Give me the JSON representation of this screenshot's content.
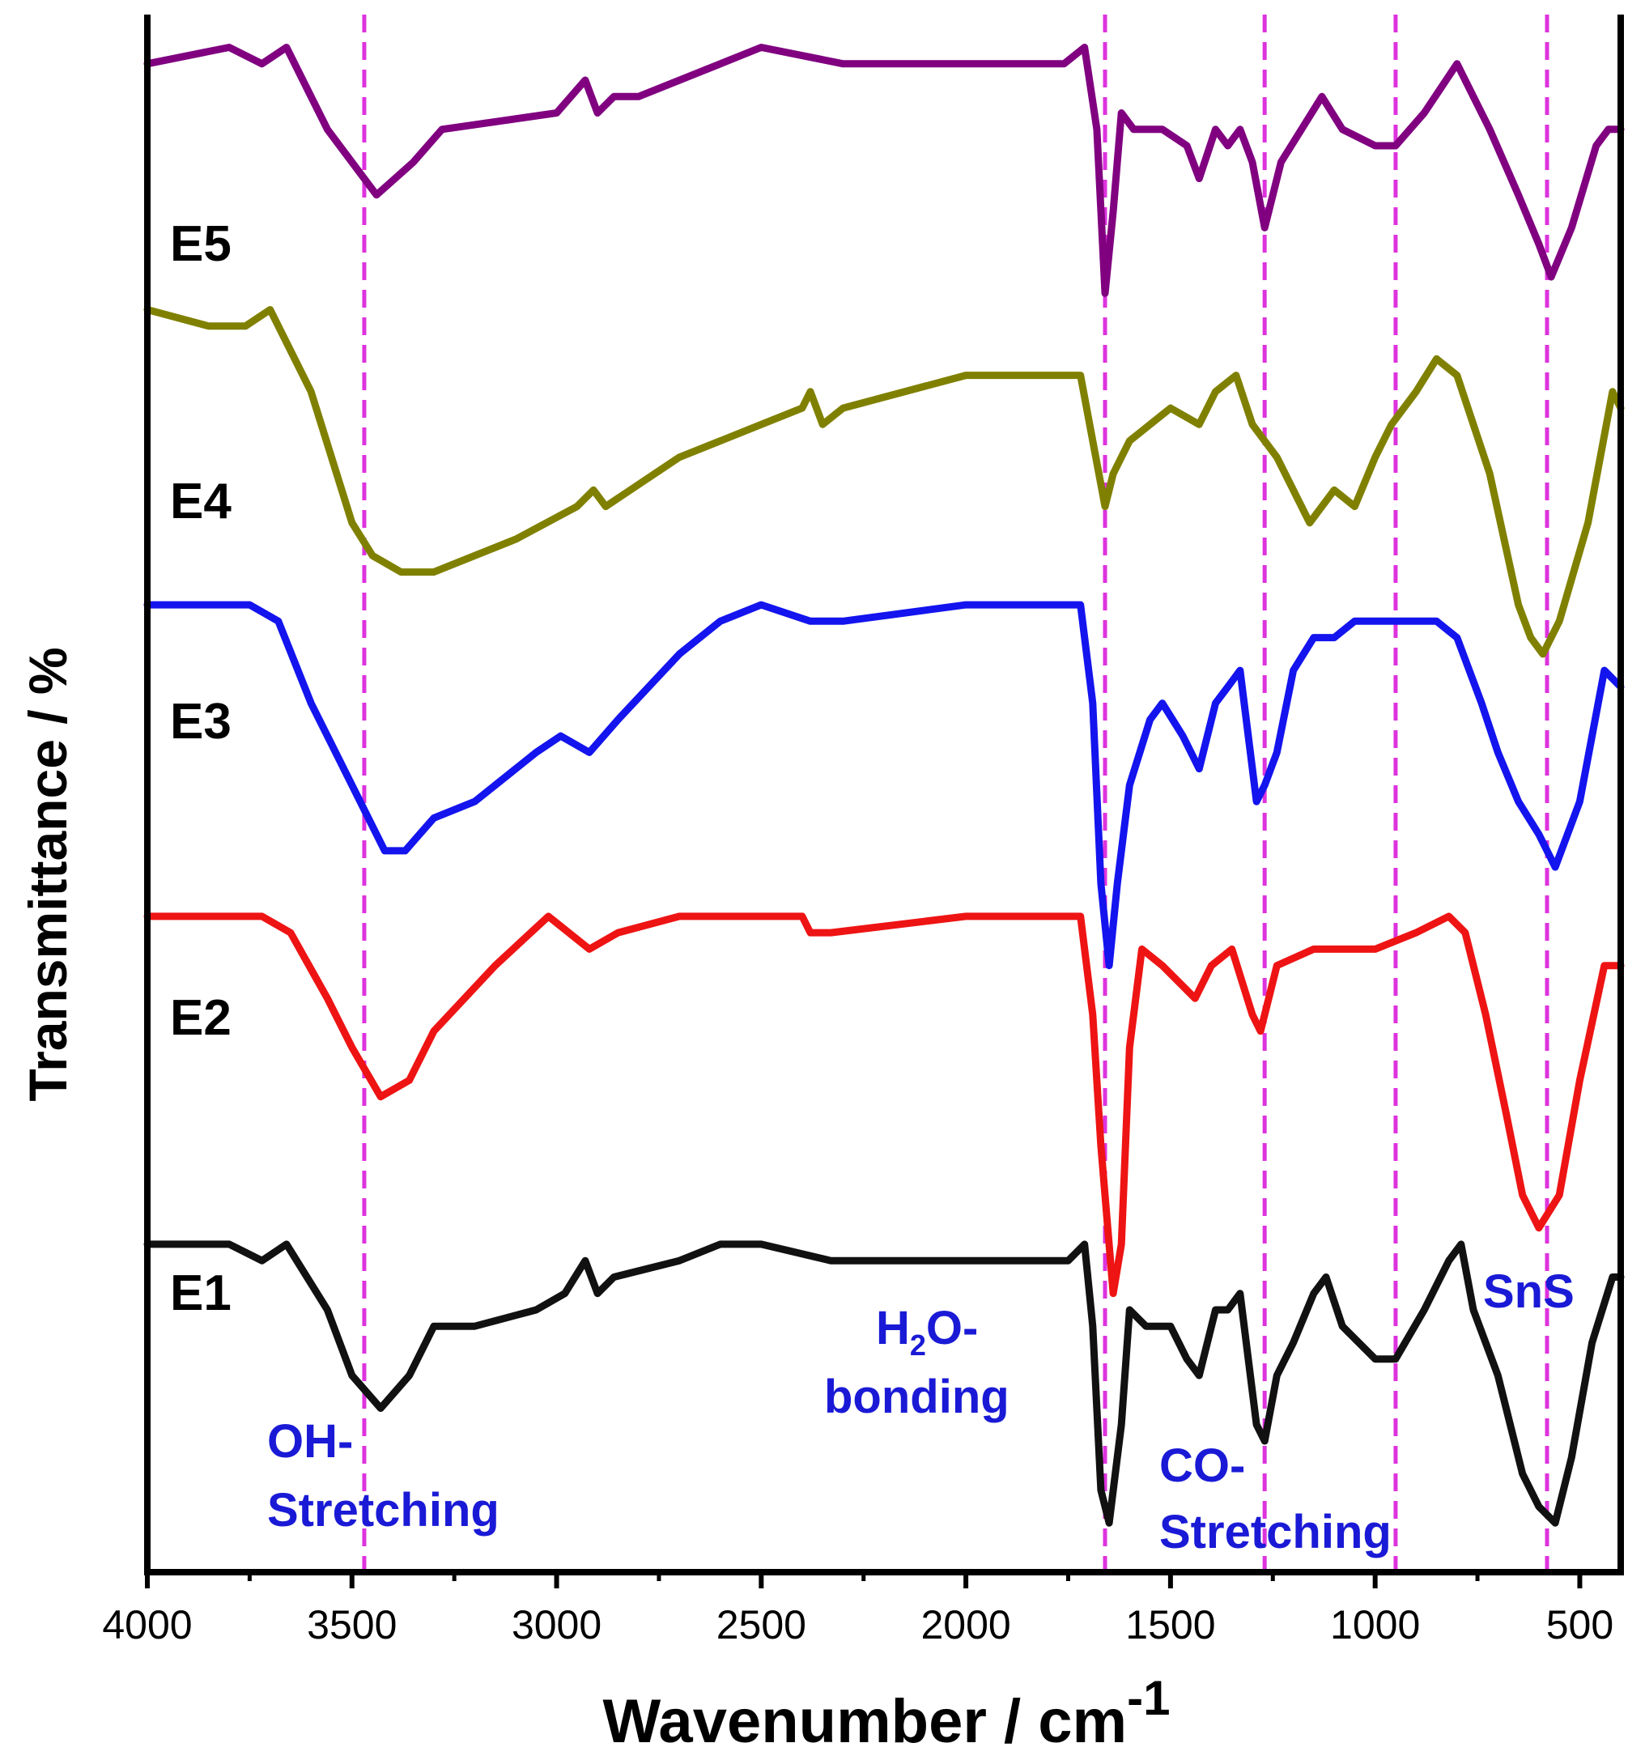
{
  "chart_data": {
    "type": "line",
    "title": "",
    "xlabel": "Wavenumber / cm",
    "xlabel_sup": "-1",
    "ylabel": "Transmittance / %",
    "xlim": [
      4000,
      400
    ],
    "x_reversed": true,
    "y_ticks_shown": false,
    "grid": false,
    "legend": "inline-left",
    "x_ticks": [
      4000,
      3500,
      3000,
      2500,
      2000,
      1500,
      1000,
      500
    ],
    "reference_lines": [
      3470,
      1660,
      1270,
      950,
      580
    ],
    "reference_line_color": "#dd33dd",
    "annotations": [
      {
        "id": "oh",
        "lines": [
          "OH-",
          "Stretching"
        ],
        "color": "#1a1ad6"
      },
      {
        "id": "h2o",
        "lines": [
          "H",
          "2",
          "O-",
          "bonding"
        ],
        "color": "#1a1ad6"
      },
      {
        "id": "co",
        "lines": [
          "CO-",
          "Stretching"
        ],
        "color": "#1a1ad6"
      },
      {
        "id": "sns",
        "lines": [
          "SnS"
        ],
        "color": "#1a1ad6"
      }
    ],
    "series": [
      {
        "name": "E5",
        "color": "#800080",
        "points": [
          [
            4000,
            0.9
          ],
          [
            3800,
            0.91
          ],
          [
            3720,
            0.9
          ],
          [
            3660,
            0.91
          ],
          [
            3560,
            0.86
          ],
          [
            3440,
            0.82
          ],
          [
            3350,
            0.84
          ],
          [
            3280,
            0.86
          ],
          [
            3000,
            0.87
          ],
          [
            2930,
            0.89
          ],
          [
            2900,
            0.87
          ],
          [
            2860,
            0.88
          ],
          [
            2800,
            0.88
          ],
          [
            2600,
            0.9
          ],
          [
            2500,
            0.91
          ],
          [
            2300,
            0.9
          ],
          [
            2000,
            0.9
          ],
          [
            1760,
            0.9
          ],
          [
            1710,
            0.91
          ],
          [
            1680,
            0.86
          ],
          [
            1660,
            0.76
          ],
          [
            1640,
            0.81
          ],
          [
            1620,
            0.87
          ],
          [
            1590,
            0.86
          ],
          [
            1520,
            0.86
          ],
          [
            1460,
            0.85
          ],
          [
            1430,
            0.83
          ],
          [
            1390,
            0.86
          ],
          [
            1360,
            0.85
          ],
          [
            1330,
            0.86
          ],
          [
            1300,
            0.84
          ],
          [
            1270,
            0.8
          ],
          [
            1230,
            0.84
          ],
          [
            1180,
            0.86
          ],
          [
            1130,
            0.88
          ],
          [
            1080,
            0.86
          ],
          [
            1000,
            0.85
          ],
          [
            950,
            0.85
          ],
          [
            880,
            0.87
          ],
          [
            800,
            0.9
          ],
          [
            720,
            0.86
          ],
          [
            650,
            0.82
          ],
          [
            600,
            0.79
          ],
          [
            570,
            0.77
          ],
          [
            520,
            0.8
          ],
          [
            460,
            0.85
          ],
          [
            430,
            0.86
          ],
          [
            400,
            0.86
          ]
        ]
      },
      {
        "name": "E4",
        "color": "#808000",
        "points": [
          [
            4000,
            0.75
          ],
          [
            3850,
            0.74
          ],
          [
            3760,
            0.74
          ],
          [
            3700,
            0.75
          ],
          [
            3600,
            0.7
          ],
          [
            3500,
            0.62
          ],
          [
            3450,
            0.6
          ],
          [
            3380,
            0.59
          ],
          [
            3300,
            0.59
          ],
          [
            3100,
            0.61
          ],
          [
            2950,
            0.63
          ],
          [
            2910,
            0.64
          ],
          [
            2880,
            0.63
          ],
          [
            2700,
            0.66
          ],
          [
            2600,
            0.67
          ],
          [
            2500,
            0.68
          ],
          [
            2400,
            0.69
          ],
          [
            2380,
            0.7
          ],
          [
            2350,
            0.68
          ],
          [
            2300,
            0.69
          ],
          [
            2000,
            0.71
          ],
          [
            1800,
            0.71
          ],
          [
            1720,
            0.71
          ],
          [
            1690,
            0.67
          ],
          [
            1660,
            0.63
          ],
          [
            1640,
            0.65
          ],
          [
            1600,
            0.67
          ],
          [
            1500,
            0.69
          ],
          [
            1430,
            0.68
          ],
          [
            1390,
            0.7
          ],
          [
            1340,
            0.71
          ],
          [
            1300,
            0.68
          ],
          [
            1240,
            0.66
          ],
          [
            1160,
            0.62
          ],
          [
            1100,
            0.64
          ],
          [
            1050,
            0.63
          ],
          [
            1000,
            0.66
          ],
          [
            960,
            0.68
          ],
          [
            900,
            0.7
          ],
          [
            850,
            0.72
          ],
          [
            800,
            0.71
          ],
          [
            720,
            0.65
          ],
          [
            650,
            0.57
          ],
          [
            620,
            0.55
          ],
          [
            590,
            0.54
          ],
          [
            550,
            0.56
          ],
          [
            480,
            0.62
          ],
          [
            420,
            0.7
          ],
          [
            400,
            0.69
          ]
        ]
      },
      {
        "name": "E3",
        "color": "#1414ee",
        "points": [
          [
            4000,
            0.57
          ],
          [
            3750,
            0.57
          ],
          [
            3680,
            0.56
          ],
          [
            3600,
            0.51
          ],
          [
            3500,
            0.46
          ],
          [
            3420,
            0.42
          ],
          [
            3370,
            0.42
          ],
          [
            3300,
            0.44
          ],
          [
            3200,
            0.45
          ],
          [
            3050,
            0.48
          ],
          [
            2990,
            0.49
          ],
          [
            2920,
            0.48
          ],
          [
            2850,
            0.5
          ],
          [
            2700,
            0.54
          ],
          [
            2600,
            0.56
          ],
          [
            2500,
            0.57
          ],
          [
            2380,
            0.56
          ],
          [
            2300,
            0.56
          ],
          [
            2000,
            0.57
          ],
          [
            1800,
            0.57
          ],
          [
            1720,
            0.57
          ],
          [
            1690,
            0.51
          ],
          [
            1670,
            0.4
          ],
          [
            1650,
            0.35
          ],
          [
            1630,
            0.4
          ],
          [
            1600,
            0.46
          ],
          [
            1550,
            0.5
          ],
          [
            1520,
            0.51
          ],
          [
            1470,
            0.49
          ],
          [
            1430,
            0.47
          ],
          [
            1390,
            0.51
          ],
          [
            1360,
            0.52
          ],
          [
            1330,
            0.53
          ],
          [
            1290,
            0.45
          ],
          [
            1270,
            0.46
          ],
          [
            1240,
            0.48
          ],
          [
            1200,
            0.53
          ],
          [
            1150,
            0.55
          ],
          [
            1100,
            0.55
          ],
          [
            1050,
            0.56
          ],
          [
            950,
            0.56
          ],
          [
            850,
            0.56
          ],
          [
            800,
            0.55
          ],
          [
            740,
            0.51
          ],
          [
            700,
            0.48
          ],
          [
            650,
            0.45
          ],
          [
            600,
            0.43
          ],
          [
            560,
            0.41
          ],
          [
            500,
            0.45
          ],
          [
            440,
            0.53
          ],
          [
            400,
            0.52
          ]
        ]
      },
      {
        "name": "E2",
        "color": "#ee1414",
        "points": [
          [
            4000,
            0.38
          ],
          [
            3800,
            0.38
          ],
          [
            3720,
            0.38
          ],
          [
            3650,
            0.37
          ],
          [
            3560,
            0.33
          ],
          [
            3500,
            0.3
          ],
          [
            3430,
            0.27
          ],
          [
            3360,
            0.28
          ],
          [
            3300,
            0.31
          ],
          [
            3150,
            0.35
          ],
          [
            3020,
            0.38
          ],
          [
            2970,
            0.37
          ],
          [
            2920,
            0.36
          ],
          [
            2850,
            0.37
          ],
          [
            2700,
            0.38
          ],
          [
            2400,
            0.38
          ],
          [
            2380,
            0.37
          ],
          [
            2330,
            0.37
          ],
          [
            2000,
            0.38
          ],
          [
            1800,
            0.38
          ],
          [
            1720,
            0.38
          ],
          [
            1690,
            0.32
          ],
          [
            1670,
            0.24
          ],
          [
            1640,
            0.15
          ],
          [
            1620,
            0.18
          ],
          [
            1600,
            0.3
          ],
          [
            1570,
            0.36
          ],
          [
            1520,
            0.35
          ],
          [
            1440,
            0.33
          ],
          [
            1400,
            0.35
          ],
          [
            1350,
            0.36
          ],
          [
            1300,
            0.32
          ],
          [
            1280,
            0.31
          ],
          [
            1240,
            0.35
          ],
          [
            1150,
            0.36
          ],
          [
            1000,
            0.36
          ],
          [
            900,
            0.37
          ],
          [
            820,
            0.38
          ],
          [
            780,
            0.37
          ],
          [
            730,
            0.32
          ],
          [
            680,
            0.26
          ],
          [
            640,
            0.21
          ],
          [
            600,
            0.19
          ],
          [
            550,
            0.21
          ],
          [
            500,
            0.28
          ],
          [
            440,
            0.35
          ],
          [
            400,
            0.35
          ]
        ]
      },
      {
        "name": "E1",
        "color": "#111111",
        "points": [
          [
            4000,
            0.18
          ],
          [
            3800,
            0.18
          ],
          [
            3720,
            0.17
          ],
          [
            3660,
            0.18
          ],
          [
            3560,
            0.14
          ],
          [
            3500,
            0.1
          ],
          [
            3430,
            0.08
          ],
          [
            3360,
            0.1
          ],
          [
            3300,
            0.13
          ],
          [
            3200,
            0.13
          ],
          [
            3050,
            0.14
          ],
          [
            2980,
            0.15
          ],
          [
            2930,
            0.17
          ],
          [
            2900,
            0.15
          ],
          [
            2860,
            0.16
          ],
          [
            2700,
            0.17
          ],
          [
            2600,
            0.18
          ],
          [
            2500,
            0.18
          ],
          [
            2330,
            0.17
          ],
          [
            2000,
            0.17
          ],
          [
            1750,
            0.17
          ],
          [
            1710,
            0.18
          ],
          [
            1690,
            0.13
          ],
          [
            1670,
            0.03
          ],
          [
            1650,
            0.01
          ],
          [
            1620,
            0.07
          ],
          [
            1600,
            0.14
          ],
          [
            1560,
            0.13
          ],
          [
            1500,
            0.13
          ],
          [
            1460,
            0.11
          ],
          [
            1430,
            0.1
          ],
          [
            1390,
            0.14
          ],
          [
            1360,
            0.14
          ],
          [
            1330,
            0.15
          ],
          [
            1290,
            0.07
          ],
          [
            1270,
            0.06
          ],
          [
            1240,
            0.1
          ],
          [
            1200,
            0.12
          ],
          [
            1150,
            0.15
          ],
          [
            1120,
            0.16
          ],
          [
            1080,
            0.13
          ],
          [
            1000,
            0.11
          ],
          [
            950,
            0.11
          ],
          [
            880,
            0.14
          ],
          [
            820,
            0.17
          ],
          [
            790,
            0.18
          ],
          [
            760,
            0.14
          ],
          [
            700,
            0.1
          ],
          [
            640,
            0.04
          ],
          [
            600,
            0.02
          ],
          [
            560,
            0.01
          ],
          [
            520,
            0.05
          ],
          [
            470,
            0.12
          ],
          [
            420,
            0.16
          ],
          [
            400,
            0.16
          ]
        ]
      }
    ]
  }
}
